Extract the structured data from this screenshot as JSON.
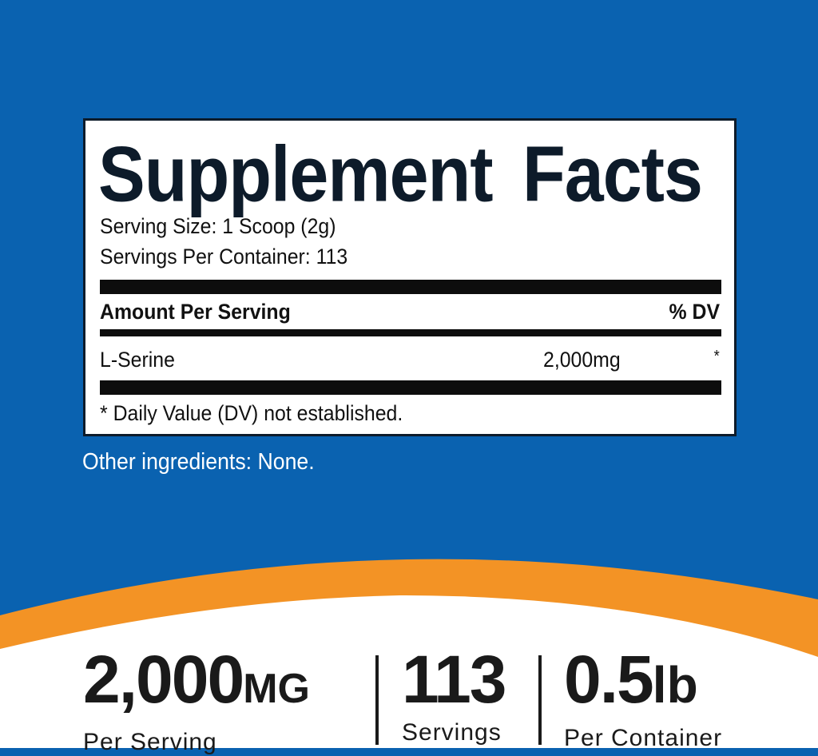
{
  "colors": {
    "background": "#0a62b0",
    "accent": "#f39325",
    "label_bg": "#ffffff"
  },
  "label": {
    "title": "Supplement Facts",
    "serving_size": "Serving Size: 1 Scoop (2g)",
    "servings_per_container": "Servings Per Container: 113",
    "amount_header": "Amount Per Serving",
    "dv_header": "% DV",
    "ingredient": {
      "name": "L-Serine",
      "amount": "2,000mg",
      "dv": "*"
    },
    "footnote": "* Daily Value (DV) not established."
  },
  "other_ingredients": "Other ingredients: None.",
  "stats": [
    {
      "value": "2,000",
      "unit": "MG",
      "caption": "Per Serving"
    },
    {
      "value": "113",
      "unit": "",
      "caption": "Servings"
    },
    {
      "value": "0.5",
      "unit": "lb",
      "caption": "Per Container"
    }
  ]
}
